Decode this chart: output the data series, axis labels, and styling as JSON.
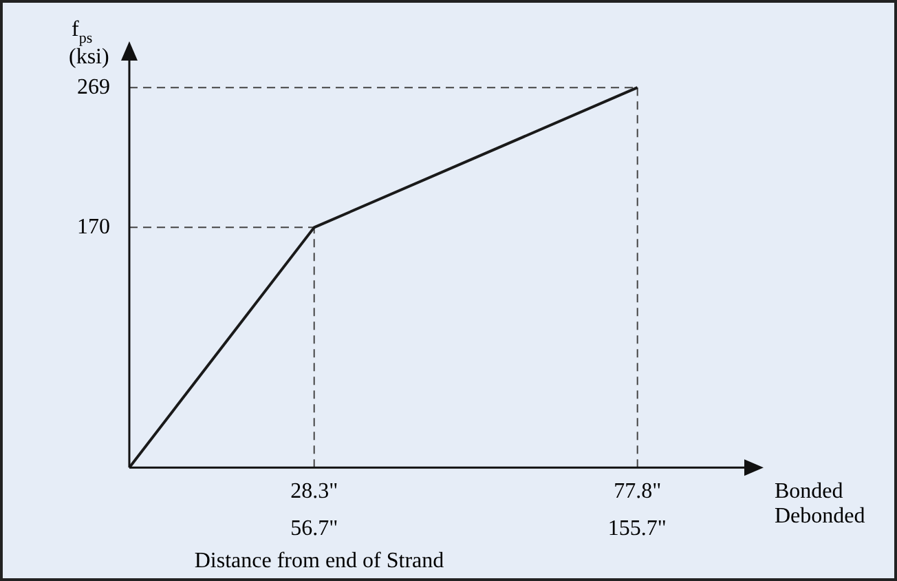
{
  "chart_data": {
    "type": "line",
    "xlabel": "Distance from end of Strand",
    "ylabel": "f$_{ps}$ (ksi)",
    "x": [
      0,
      28.3,
      77.8
    ],
    "series": [
      {
        "color": "#1a1a1a",
        "values": [
          0,
          170,
          269
        ]
      }
    ],
    "xlim": [
      0,
      95
    ],
    "ylim": [
      0,
      292
    ],
    "xticks": [
      {
        "value": 28.3,
        "label": "28.3\""
      },
      {
        "value": 77.8,
        "label": "77.8\""
      }
    ],
    "x2lim": [
      0,
      190.2
    ],
    "x2ticks": [
      {
        "value": 56.7,
        "label": "56.7\""
      },
      {
        "value": 155.7,
        "label": "155.7\""
      }
    ],
    "yticks": [
      170,
      269
    ],
    "ref_lines": [
      {
        "axis": "x",
        "value": 28.3,
        "line_style": "dashed",
        "color": "#444444"
      },
      {
        "axis": "x",
        "value": 77.8,
        "line_style": "dashed",
        "color": "#444444"
      },
      {
        "axis": "y",
        "value": 170,
        "line_style": "dashed",
        "color": "#444444"
      },
      {
        "axis": "y",
        "value": 269,
        "line_style": "dashed",
        "color": "#444444"
      }
    ],
    "annotations": [
      "Bonded",
      "Debonded"
    ],
    "grid": false,
    "legend": false,
    "marker": "none",
    "line_style": "solid"
  }
}
